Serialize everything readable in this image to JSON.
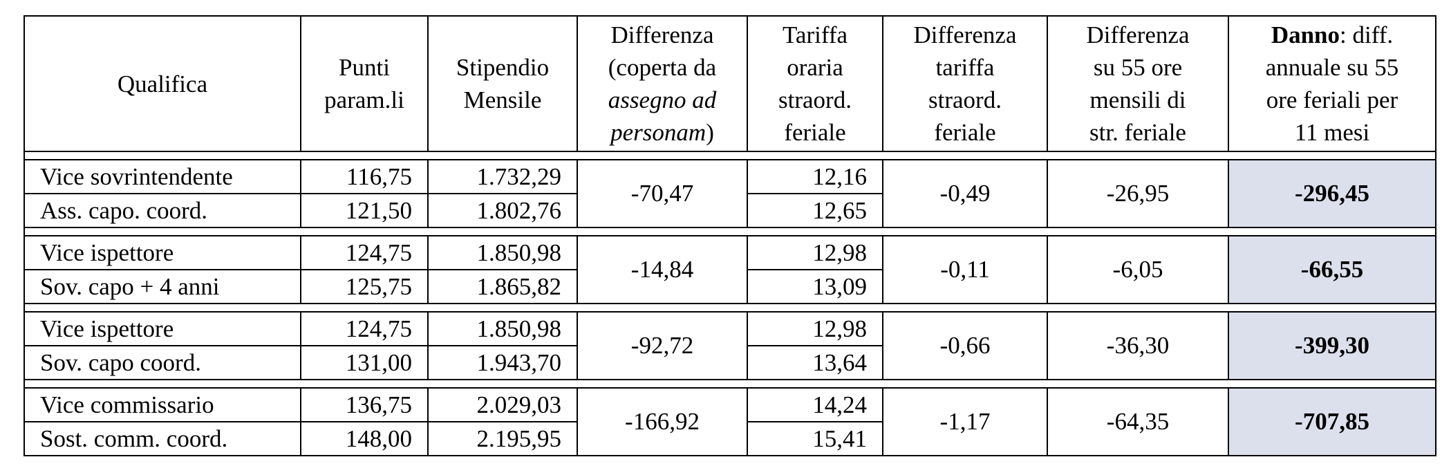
{
  "headers": {
    "qualifica": "Qualifica",
    "punti_l1": "Punti",
    "punti_l2": "param.li",
    "stip_l1": "Stipendio",
    "stip_l2": "Mensile",
    "diff_l1": "Differenza",
    "diff_l2": "(coperta da",
    "diff_l3": "assegno ad",
    "diff_l4": "personam",
    "diff_l4_tail": ")",
    "tariffa_l1": "Tariffa",
    "tariffa_l2": "oraria",
    "tariffa_l3": "straord.",
    "tariffa_l4": "feriale",
    "difftar_l1": "Differenza",
    "difftar_l2": "tariffa",
    "difftar_l3": "straord.",
    "difftar_l4": "feriale",
    "diff55_l1": "Differenza",
    "diff55_l2": "su 55 ore",
    "diff55_l3": "mensili di",
    "diff55_l4": "str. feriale",
    "danno_bold": "Danno",
    "danno_l1_rest": ": diff.",
    "danno_l2": "annuale su 55",
    "danno_l3": "ore feriali per",
    "danno_l4": "11 mesi"
  },
  "groups": [
    {
      "rows": [
        {
          "qualifica": "Vice sovrintendente",
          "punti": "116,75",
          "stipendio": "1.732,29",
          "tariffa": "12,16"
        },
        {
          "qualifica": "Ass. capo. coord.",
          "punti": "121,50",
          "stipendio": "1.802,76",
          "tariffa": "12,65"
        }
      ],
      "differenza": "-70,47",
      "diff_tariffa": "-0,49",
      "diff_55": "-26,95",
      "danno": "-296,45"
    },
    {
      "rows": [
        {
          "qualifica": "Vice ispettore",
          "punti": "124,75",
          "stipendio": "1.850,98",
          "tariffa": "12,98"
        },
        {
          "qualifica": "Sov. capo + 4 anni",
          "punti": "125,75",
          "stipendio": "1.865,82",
          "tariffa": "13,09"
        }
      ],
      "differenza": "-14,84",
      "diff_tariffa": "-0,11",
      "diff_55": "-6,05",
      "danno": "-66,55"
    },
    {
      "rows": [
        {
          "qualifica": "Vice ispettore",
          "punti": "124,75",
          "stipendio": "1.850,98",
          "tariffa": "12,98"
        },
        {
          "qualifica": "Sov. capo coord.",
          "punti": "131,00",
          "stipendio": "1.943,70",
          "tariffa": "13,64"
        }
      ],
      "differenza": "-92,72",
      "diff_tariffa": "-0,66",
      "diff_55": "-36,30",
      "danno": "-399,30"
    },
    {
      "rows": [
        {
          "qualifica": "Vice commissario",
          "punti": "136,75",
          "stipendio": "2.029,03",
          "tariffa": "14,24"
        },
        {
          "qualifica": "Sost. comm. coord.",
          "punti": "148,00",
          "stipendio": "2.195,95",
          "tariffa": "15,41"
        }
      ],
      "differenza": "-166,92",
      "diff_tariffa": "-1,17",
      "diff_55": "-64,35",
      "danno": "-707,85"
    }
  ],
  "colors": {
    "damage_cell_bg": "#dcdfec",
    "border": "#000000"
  }
}
